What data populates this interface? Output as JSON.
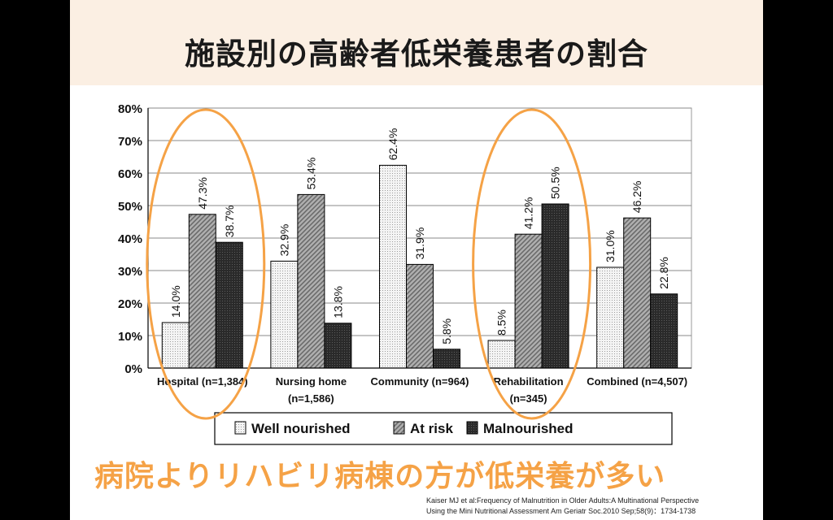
{
  "slide": {
    "title": "施設別の高齢者低栄養患者の割合",
    "conclusion": "病院よりリハビリ病棟の方が低栄養が多い",
    "citation_line1": "Kaiser MJ et al:Frequency of Malnutrition in Older Adults:A Multinational Perspective",
    "citation_line2": "Using the Mini Nutritional Assessment Am Geriatr Soc.2010 Sep;58(9)：1734-1738"
  },
  "colors": {
    "highlight": "#f5a246",
    "title_band": "#fbefe3",
    "well_nourished": "#ededed",
    "at_risk": "#9a9a9a",
    "malnourished": "#2f2f2f"
  },
  "chart_data": {
    "type": "bar",
    "title": "",
    "xlabel": "",
    "ylabel": "",
    "ylim": [
      0,
      80
    ],
    "yticks": [
      "0%",
      "10%",
      "20%",
      "30%",
      "40%",
      "50%",
      "60%",
      "70%",
      "80%"
    ],
    "grid": true,
    "categories": [
      {
        "line1": "Hospital (n=1,384)",
        "line2": ""
      },
      {
        "line1": "Nursing home",
        "line2": "(n=1,586)"
      },
      {
        "line1": "Community (n=964)",
        "line2": ""
      },
      {
        "line1": "Rehabilitation",
        "line2": "(n=345)"
      },
      {
        "line1": "Combined (n=4,507)",
        "line2": ""
      }
    ],
    "series": [
      {
        "name": "Well nourished",
        "values": [
          14.0,
          32.9,
          62.4,
          8.5,
          31.0
        ],
        "labels": [
          "14.0%",
          "32.9%",
          "62.4%",
          "8.5%",
          "31.0%"
        ]
      },
      {
        "name": "At risk",
        "values": [
          47.3,
          53.4,
          31.9,
          41.2,
          46.2
        ],
        "labels": [
          "47.3%",
          "53.4%",
          "31.9%",
          "41.2%",
          "46.2%"
        ]
      },
      {
        "name": "Malnourished",
        "values": [
          38.7,
          13.8,
          5.8,
          50.5,
          22.8
        ],
        "labels": [
          "38.7%",
          "13.8%",
          "5.8%",
          "50.5%",
          "22.8%"
        ]
      }
    ],
    "legend_position": "bottom",
    "highlighted_categories": [
      "Hospital (n=1,384)",
      "Rehabilitation"
    ]
  }
}
